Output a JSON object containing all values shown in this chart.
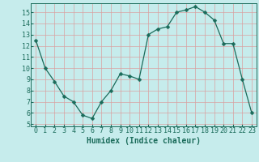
{
  "x": [
    0,
    1,
    2,
    3,
    4,
    5,
    6,
    7,
    8,
    9,
    10,
    11,
    12,
    13,
    14,
    15,
    16,
    17,
    18,
    19,
    20,
    21,
    22,
    23
  ],
  "y": [
    12.5,
    10.0,
    8.8,
    7.5,
    7.0,
    5.8,
    5.5,
    7.0,
    8.0,
    9.5,
    9.3,
    9.0,
    13.0,
    13.5,
    13.7,
    15.0,
    15.2,
    15.5,
    15.0,
    14.3,
    12.2,
    12.2,
    9.0,
    6.0
  ],
  "xlabel": "Humidex (Indice chaleur)",
  "xlim": [
    -0.5,
    23.5
  ],
  "ylim": [
    4.8,
    15.8
  ],
  "xticks": [
    0,
    1,
    2,
    3,
    4,
    5,
    6,
    7,
    8,
    9,
    10,
    11,
    12,
    13,
    14,
    15,
    16,
    17,
    18,
    19,
    20,
    21,
    22,
    23
  ],
  "yticks": [
    5,
    6,
    7,
    8,
    9,
    10,
    11,
    12,
    13,
    14,
    15
  ],
  "line_color": "#1a6b5a",
  "marker": "D",
  "marker_size": 2.5,
  "bg_color": "#c6ecec",
  "grid_color": "#d9a0a0",
  "label_fontsize": 7,
  "tick_fontsize": 6
}
